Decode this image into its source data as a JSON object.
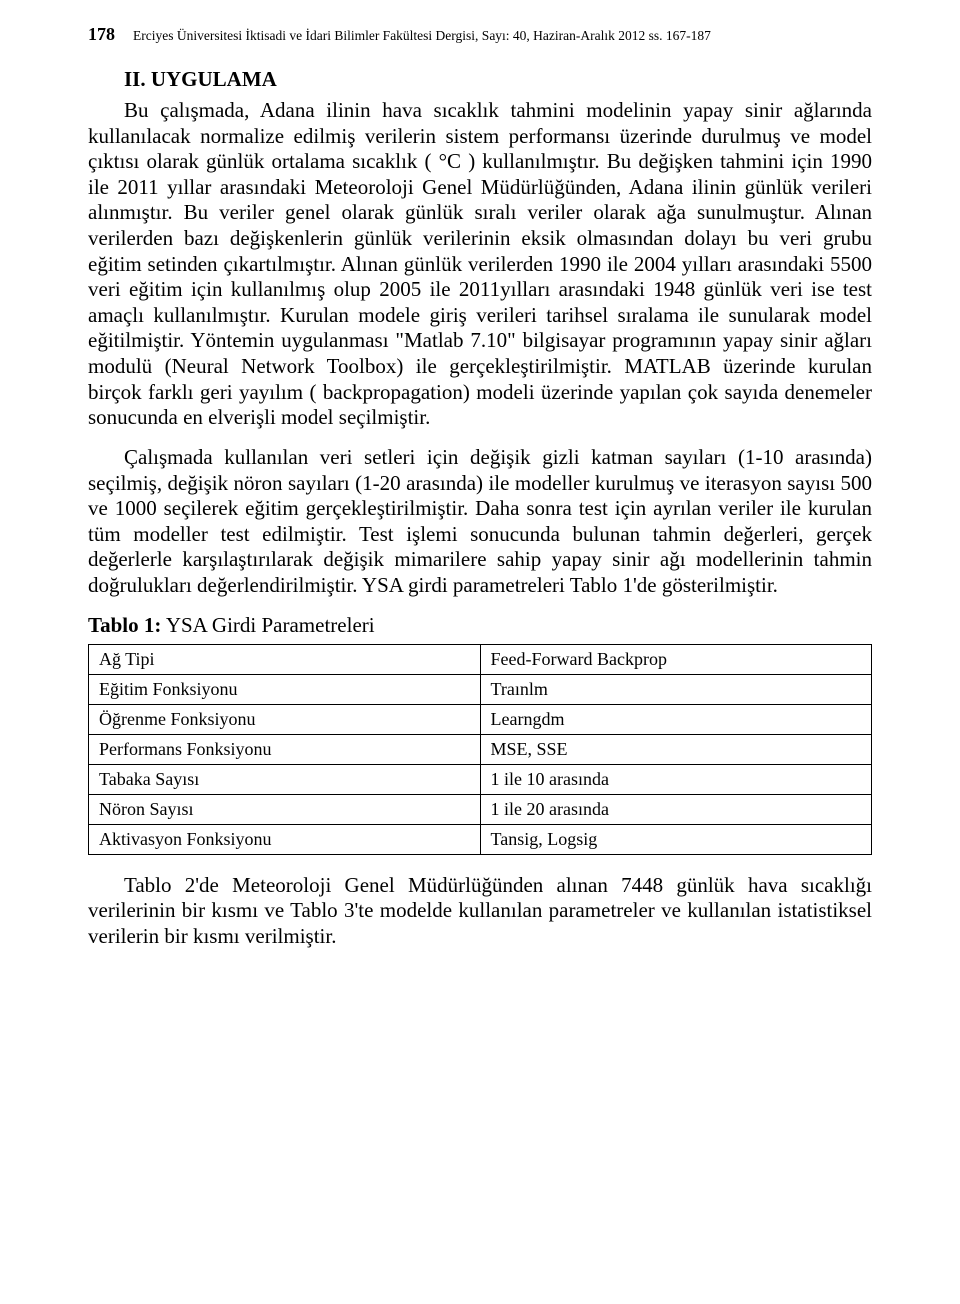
{
  "header": {
    "page_number": "178",
    "journal": "Erciyes Üniversitesi İktisadi ve İdari Bilimler Fakültesi Dergisi, Sayı: 40, Haziran-Aralık 2012 ss. 167-187"
  },
  "section": {
    "title": "II. UYGULAMA"
  },
  "paragraphs": {
    "p1": "Bu çalışmada, Adana ilinin hava sıcaklık tahmini modelinin yapay sinir ağlarında kullanılacak normalize edilmiş verilerin sistem performansı üzerinde durulmuş ve model çıktısı olarak günlük ortalama sıcaklık ( °C ) kullanılmıştır. Bu değişken tahmini için 1990 ile 2011 yıllar arasındaki Meteoroloji Genel Müdürlüğünden, Adana ilinin günlük verileri alınmıştır. Bu veriler genel olarak günlük sıralı veriler olarak ağa sunulmuştur. Alınan verilerden bazı değişkenlerin günlük verilerinin eksik olmasından dolayı bu veri grubu eğitim setinden çıkartılmıştır. Alınan günlük verilerden 1990 ile 2004 yılları arasındaki 5500 veri eğitim için kullanılmış olup 2005 ile 2011yılları arasındaki 1948 günlük veri ise test amaçlı kullanılmıştır. Kurulan modele giriş verileri tarihsel sıralama ile sunularak model eğitilmiştir. Yöntemin uygulanması \"Matlab 7.10\" bilgisayar programının yapay sinir ağları modulü (Neural Network Toolbox) ile gerçekleştirilmiştir. MATLAB üzerinde kurulan birçok farklı geri yayılım ( backpropagation) modeli üzerinde yapılan çok sayıda denemeler sonucunda en elverişli model seçilmiştir.",
    "p2": "Çalışmada kullanılan veri setleri için değişik gizli katman sayıları (1-10 arasında) seçilmiş, değişik nöron sayıları (1-20 arasında) ile modeller kurulmuş ve iterasyon sayısı 500 ve 1000 seçilerek eğitim gerçekleştirilmiştir. Daha sonra test için ayrılan veriler ile kurulan tüm modeller test edilmiştir. Test işlemi sonucunda bulunan tahmin değerleri, gerçek değerlerle karşılaştırılarak değişik mimarilere sahip yapay sinir ağı modellerinin tahmin doğrulukları değerlendirilmiştir. YSA girdi parametreleri Tablo 1'de gösterilmiştir.",
    "footer": "Tablo 2'de Meteoroloji Genel Müdürlüğünden alınan 7448 günlük hava sıcaklığı verilerinin bir kısmı ve Tablo 3'te modelde kullanılan parametreler ve kullanılan istatistiksel verilerin bir kısmı verilmiştir."
  },
  "table": {
    "caption_bold": "Tablo 1:",
    "caption_rest": " YSA Girdi Parametreleri",
    "rows": [
      {
        "label": "Ağ Tipi",
        "value": "Feed-Forward Backprop"
      },
      {
        "label": "Eğitim Fonksiyonu",
        "value": "Traınlm"
      },
      {
        "label": "Öğrenme Fonksiyonu",
        "value": "Learngdm"
      },
      {
        "label": "Performans Fonksiyonu",
        "value": "MSE, SSE"
      },
      {
        "label": "Tabaka Sayısı",
        "value": "1 ile 10 arasında"
      },
      {
        "label": "Nöron Sayısı",
        "value": "1 ile 20 arasında"
      },
      {
        "label": "Aktivasyon Fonksiyonu",
        "value": "Tansig, Logsig"
      }
    ]
  }
}
